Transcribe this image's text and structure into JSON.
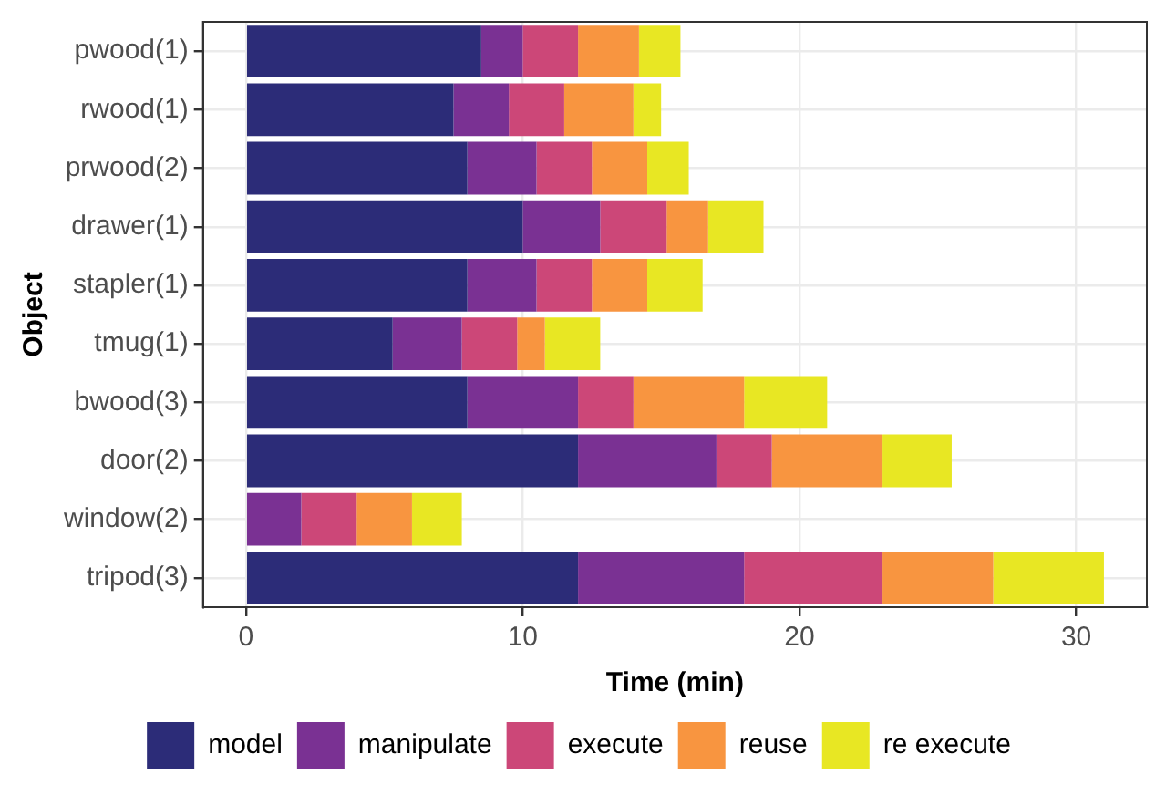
{
  "chart_data": {
    "type": "bar",
    "orientation": "horizontal",
    "stacked": true,
    "xlabel": "Time (min)",
    "ylabel": "Object",
    "categories": [
      "pwood(1)",
      "rwood(1)",
      "prwood(2)",
      "drawer(1)",
      "stapler(1)",
      "tmug(1)",
      "bwood(3)",
      "door(2)",
      "window(2)",
      "tripod(3)"
    ],
    "series": [
      {
        "name": "model",
        "color": "#2c2c78",
        "values": [
          8.5,
          7.5,
          8,
          10,
          8,
          5.3,
          8,
          12,
          0,
          12
        ]
      },
      {
        "name": "manipulate",
        "color": "#7a3193",
        "values": [
          1.5,
          2,
          2.5,
          2.8,
          2.5,
          2.5,
          4,
          5,
          2,
          6
        ]
      },
      {
        "name": "execute",
        "color": "#cc4778",
        "values": [
          2,
          2,
          2,
          2.4,
          2,
          2,
          2,
          2,
          2,
          5
        ]
      },
      {
        "name": "reuse",
        "color": "#f89540",
        "values": [
          2.2,
          2.5,
          2,
          1.5,
          2,
          1,
          4,
          4,
          2,
          4
        ]
      },
      {
        "name": "re execute",
        "color": "#e8e723",
        "values": [
          1.5,
          1,
          1.5,
          2,
          2,
          2,
          3,
          2.5,
          1.8,
          4
        ]
      }
    ],
    "xlim": [
      -1.55,
      32.55
    ],
    "xticks": [
      0,
      10,
      20,
      30
    ],
    "grid": true,
    "legend": "bottom"
  }
}
